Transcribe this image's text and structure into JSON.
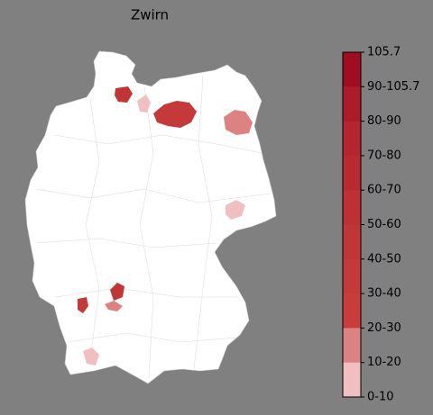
{
  "title": "Zwirn",
  "legend": {
    "labels": [
      "105.7",
      "90-105.7",
      "80-90",
      "70-80",
      "60-70",
      "50-60",
      "40-50",
      "30-40",
      "20-30",
      "10-20",
      "0-10"
    ],
    "colors": [
      "#a00d22",
      "#ab1c2a",
      "#b32630",
      "#b82a30",
      "#bd3034",
      "#c03636",
      "#c43a3b",
      "#c83c3c",
      "#dc8282",
      "#f0c0c0"
    ]
  }
}
